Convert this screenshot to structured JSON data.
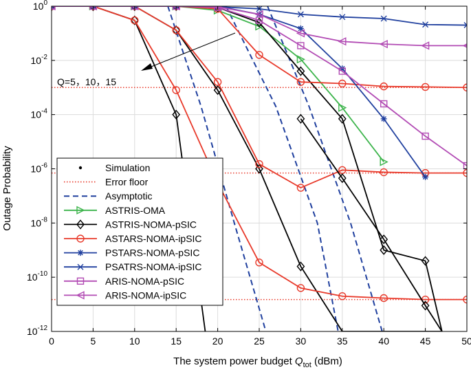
{
  "chart_data": {
    "type": "line",
    "xlabel": "The system power budget ",
    "xlabel_symbol": "Q",
    "xlabel_subscript": "tot",
    "xlabel_unit": " (dBm)",
    "ylabel": "Outage Probability",
    "xlim": [
      0,
      50
    ],
    "ylim": [
      1e-12,
      1
    ],
    "yscale": "log",
    "xticks": [
      0,
      5,
      10,
      15,
      20,
      25,
      30,
      35,
      40,
      45,
      50
    ],
    "yticks": [
      {
        "value": 1,
        "base": "10",
        "exp": "0"
      },
      {
        "value": 0.01,
        "base": "10",
        "exp": "-2"
      },
      {
        "value": 0.0001,
        "base": "10",
        "exp": "-4"
      },
      {
        "value": 1e-06,
        "base": "10",
        "exp": "-6"
      },
      {
        "value": 1e-08,
        "base": "10",
        "exp": "-8"
      },
      {
        "value": 1e-10,
        "base": "10",
        "exp": "-10"
      },
      {
        "value": 1e-12,
        "base": "10",
        "exp": "-12"
      }
    ],
    "grid": true,
    "legend_position": "bottom-left",
    "annotation": {
      "text": "Q=5，10，15"
    },
    "error_floors": [
      0.001,
      7e-07,
      1.5e-11
    ],
    "asymptotic": [
      {
        "x": [
          14,
          18,
          22,
          25.8
        ],
        "y": [
          1,
          0.0002,
          1e-08,
          1e-12
        ]
      },
      {
        "x": [
          21,
          27,
          32,
          34.5
        ],
        "y": [
          1,
          0.0002,
          1e-08,
          1e-12
        ]
      },
      {
        "x": [
          26,
          31,
          36,
          39.8
        ],
        "y": [
          1,
          0.0002,
          1e-08,
          1e-12
        ]
      }
    ],
    "series": [
      {
        "name": "ASTRIS-OMA",
        "color": "#3cb44b",
        "marker": "tri-right",
        "x": [
          0,
          5,
          10,
          15,
          20,
          25,
          30,
          35,
          40
        ],
        "y": [
          1,
          1,
          1,
          1,
          0.7,
          0.18,
          0.011,
          0.00018,
          1.8e-06
        ]
      },
      {
        "name": "ASTRIS-NOMA-pSIC",
        "color": "#000000",
        "marker": "diamond",
        "x": [
          0,
          5,
          10,
          15,
          20,
          25,
          30,
          35,
          40,
          45,
          47
        ],
        "y": [
          1,
          1,
          1,
          1,
          0.9,
          0.25,
          0.004,
          7e-05,
          1e-09,
          4e-10,
          1e-12
        ]
      },
      {
        "name": "ASTARS-NOMA-ipSIC",
        "color": "#e8392a",
        "marker": "circle",
        "x": [
          0,
          5,
          10,
          15,
          20,
          25,
          30,
          35,
          40,
          45,
          50
        ],
        "y": [
          1,
          1,
          1,
          1,
          0.8,
          0.016,
          0.0016,
          0.0014,
          0.0011,
          0.00105,
          0.001
        ]
      },
      {
        "name": "PSTARS-NOMA-pSIC",
        "color": "#1f3f9e",
        "marker": "star",
        "x": [
          0,
          5,
          10,
          15,
          20,
          25,
          30,
          35,
          40,
          45
        ],
        "y": [
          1,
          1,
          1,
          1,
          1,
          0.5,
          0.15,
          0.005,
          7e-05,
          5e-07
        ]
      },
      {
        "name": "PSATRS-NOMA-ipSIC",
        "color": "#1f3f9e",
        "marker": "x",
        "x": [
          0,
          5,
          10,
          15,
          20,
          25,
          30,
          35,
          40,
          45,
          50
        ],
        "y": [
          1,
          1,
          1,
          1,
          0.95,
          0.8,
          0.5,
          0.4,
          0.35,
          0.21,
          0.2
        ]
      },
      {
        "name": "ARIS-NOMA-pSIC",
        "color": "#b24bb4",
        "marker": "square",
        "x": [
          0,
          5,
          10,
          15,
          20,
          25,
          30,
          35,
          40,
          45,
          50
        ],
        "y": [
          1,
          1,
          1,
          1,
          0.9,
          0.3,
          0.035,
          0.004,
          0.00025,
          1.6e-05,
          1.3e-06
        ]
      },
      {
        "name": "ARIS-NOMA-ipSIC",
        "color": "#b24bb4",
        "marker": "tri-left",
        "x": [
          0,
          5,
          10,
          15,
          20,
          25,
          30,
          35,
          40,
          45,
          50
        ],
        "y": [
          1,
          1,
          1,
          1,
          0.95,
          0.5,
          0.1,
          0.05,
          0.04,
          0.035,
          0.035
        ]
      }
    ],
    "extra_lines": [
      {
        "color": "#000000",
        "marker": "diamond",
        "x": [
          0,
          5,
          10,
          15,
          20,
          25,
          30,
          35,
          40,
          45,
          47
        ],
        "y": [
          1,
          1,
          1,
          0.13,
          0.0008,
          1e-06,
          2.5e-10,
          1e-12,
          1e-12,
          1e-12,
          1e-12
        ]
      },
      {
        "color": "#000000",
        "marker": "diamond",
        "x": [
          0,
          5,
          10,
          15,
          18.5
        ],
        "y": [
          1,
          1,
          0.3,
          0.0001,
          1e-12
        ]
      },
      {
        "color": "#e8392a",
        "marker": "circle",
        "x": [
          0,
          5,
          10,
          15,
          20,
          25,
          30,
          35,
          40,
          45,
          50
        ],
        "y": [
          1,
          1,
          1,
          0.13,
          0.0016,
          1.5e-06,
          2e-07,
          9e-07,
          7.5e-07,
          7e-07,
          7e-07
        ]
      },
      {
        "color": "#e8392a",
        "marker": "circle",
        "x": [
          0,
          5,
          10,
          15,
          20,
          25,
          30,
          35,
          40,
          45,
          50
        ],
        "y": [
          1,
          1,
          0.3,
          0.0008,
          3e-07,
          3.5e-10,
          4e-11,
          2e-11,
          1.7e-11,
          1.5e-11,
          1.5e-11
        ]
      },
      {
        "color": "#000000",
        "marker": "diamond",
        "x": [
          30,
          35,
          40,
          45,
          47
        ],
        "y": [
          7e-05,
          4.5e-07,
          2.5e-09,
          9e-12,
          1e-12
        ]
      }
    ],
    "legend": [
      {
        "label": "Simulation",
        "kind": "dot",
        "color": "#000000"
      },
      {
        "label": "Error floor",
        "kind": "dotted",
        "color": "#e8392a"
      },
      {
        "label": "Asymptotic",
        "kind": "dashed",
        "color": "#1f3f9e"
      },
      {
        "label": "ASTRIS-OMA",
        "kind": "series",
        "series": 0
      },
      {
        "label": "ASTRIS-NOMA-pSIC",
        "kind": "series",
        "series": 1
      },
      {
        "label": "ASTARS-NOMA-ipSIC",
        "kind": "series",
        "series": 2
      },
      {
        "label": "PSTARS-NOMA-pSIC",
        "kind": "series",
        "series": 3
      },
      {
        "label": "PSATRS-NOMA-ipSIC",
        "kind": "series",
        "series": 4
      },
      {
        "label": "ARIS-NOMA-pSIC",
        "kind": "series",
        "series": 5
      },
      {
        "label": "ARIS-NOMA-ipSIC",
        "kind": "series",
        "series": 6
      }
    ]
  }
}
